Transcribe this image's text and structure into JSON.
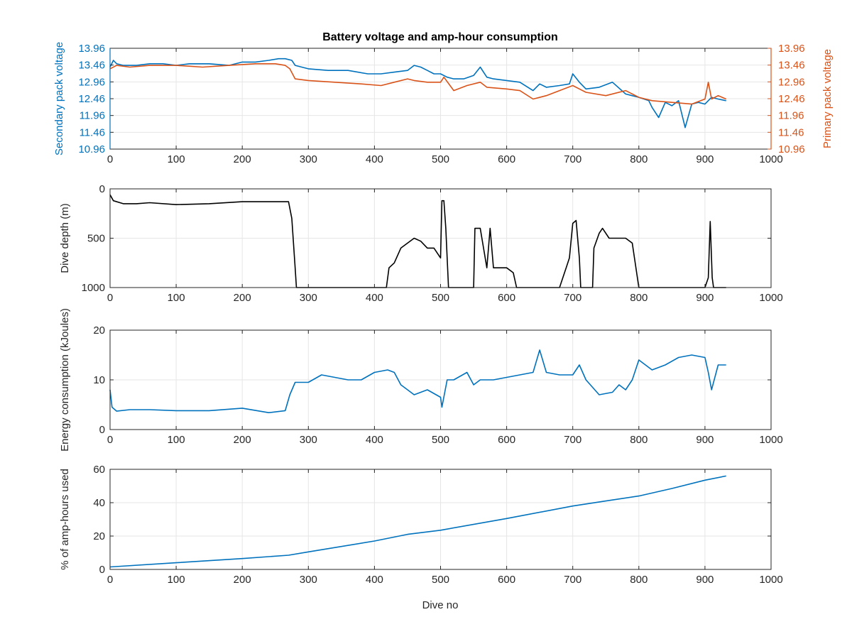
{
  "figure": {
    "title": "Battery voltage and amp-hour consumption",
    "xlabel": "Dive no"
  },
  "colors": {
    "secondary": "#0072bd",
    "primary": "#d95319",
    "depth": "#000000",
    "energy": "#0072bd",
    "amphours": "#0072bd"
  },
  "chart_data": [
    {
      "type": "line",
      "title": "Battery voltage and amp-hour consumption",
      "xlabel": "",
      "ylabel": "Secondary pack voltage",
      "ylabel_right": "Primary pack voltage",
      "xlim": [
        0,
        1000
      ],
      "ylim": [
        10.96,
        13.96
      ],
      "xticks": [
        "0",
        "100",
        "200",
        "300",
        "400",
        "500",
        "600",
        "700",
        "800",
        "900",
        "1000"
      ],
      "yticks": [
        "10.96",
        "11.46",
        "11.96",
        "12.46",
        "12.96",
        "13.46",
        "13.96"
      ],
      "grid": true,
      "series": [
        {
          "axis": "left",
          "color": "#0072bd",
          "x": [
            0,
            5,
            10,
            20,
            40,
            60,
            80,
            100,
            120,
            150,
            180,
            200,
            220,
            240,
            255,
            265,
            275,
            280,
            300,
            330,
            360,
            390,
            410,
            430,
            450,
            460,
            470,
            480,
            490,
            500,
            510,
            520,
            535,
            550,
            560,
            570,
            580,
            600,
            620,
            640,
            650,
            660,
            680,
            695,
            700,
            710,
            720,
            740,
            760,
            780,
            800,
            815,
            820,
            830,
            840,
            850,
            860,
            870,
            880,
            890,
            900,
            910,
            920,
            932
          ],
          "y": [
            13.4,
            13.6,
            13.5,
            13.45,
            13.45,
            13.5,
            13.5,
            13.45,
            13.5,
            13.5,
            13.45,
            13.55,
            13.55,
            13.6,
            13.65,
            13.65,
            13.6,
            13.45,
            13.35,
            13.3,
            13.3,
            13.2,
            13.2,
            13.25,
            13.3,
            13.45,
            13.4,
            13.3,
            13.2,
            13.2,
            13.1,
            13.05,
            13.05,
            13.15,
            13.4,
            13.1,
            13.05,
            13.0,
            12.95,
            12.7,
            12.9,
            12.8,
            12.85,
            12.9,
            13.2,
            12.95,
            12.75,
            12.8,
            12.95,
            12.6,
            12.5,
            12.4,
            12.2,
            11.9,
            12.35,
            12.25,
            12.4,
            11.6,
            12.3,
            12.35,
            12.3,
            12.5,
            12.45,
            12.4
          ]
        },
        {
          "axis": "right",
          "color": "#d95319",
          "x": [
            0,
            10,
            30,
            60,
            100,
            140,
            180,
            220,
            250,
            265,
            272,
            280,
            300,
            340,
            380,
            410,
            430,
            450,
            460,
            480,
            500,
            505,
            520,
            540,
            560,
            570,
            600,
            620,
            640,
            660,
            680,
            700,
            720,
            750,
            780,
            800,
            820,
            850,
            880,
            900,
            905,
            910,
            920,
            932
          ],
          "y": [
            13.35,
            13.45,
            13.4,
            13.45,
            13.45,
            13.4,
            13.45,
            13.5,
            13.5,
            13.45,
            13.35,
            13.05,
            13.0,
            12.95,
            12.9,
            12.85,
            12.95,
            13.05,
            13.0,
            12.95,
            12.95,
            13.1,
            12.7,
            12.85,
            12.95,
            12.8,
            12.75,
            12.7,
            12.45,
            12.55,
            12.7,
            12.85,
            12.65,
            12.55,
            12.7,
            12.5,
            12.4,
            12.35,
            12.3,
            12.45,
            12.95,
            12.45,
            12.55,
            12.45
          ]
        }
      ]
    },
    {
      "type": "line",
      "xlabel": "",
      "ylabel": "Dive depth (m)",
      "xlim": [
        0,
        1000
      ],
      "ylim": [
        1000,
        0
      ],
      "reversed_y": true,
      "xticks": [
        "0",
        "100",
        "200",
        "300",
        "400",
        "500",
        "600",
        "700",
        "800",
        "900",
        "1000"
      ],
      "yticks": [
        "0",
        "500",
        "1000"
      ],
      "grid": true,
      "series": [
        {
          "color": "#000000",
          "x": [
            0,
            5,
            20,
            40,
            60,
            100,
            150,
            200,
            230,
            260,
            270,
            275,
            280,
            282,
            300,
            350,
            400,
            418,
            422,
            430,
            440,
            450,
            460,
            470,
            480,
            490,
            500,
            502,
            505,
            508,
            512,
            515,
            550,
            552,
            555,
            560,
            570,
            575,
            580,
            590,
            600,
            610,
            615,
            620,
            680,
            690,
            695,
            700,
            705,
            710,
            712,
            730,
            732,
            740,
            745,
            755,
            760,
            770,
            780,
            790,
            800,
            805,
            900,
            905,
            908,
            911,
            913,
            932
          ],
          "y": [
            60,
            120,
            150,
            150,
            140,
            160,
            150,
            130,
            130,
            130,
            130,
            300,
            800,
            1000,
            1000,
            1000,
            1000,
            1000,
            800,
            750,
            600,
            550,
            500,
            530,
            600,
            600,
            700,
            120,
            120,
            400,
            1000,
            1000,
            1000,
            400,
            400,
            400,
            800,
            400,
            800,
            800,
            800,
            850,
            1000,
            1000,
            1000,
            800,
            700,
            350,
            320,
            700,
            1000,
            1000,
            600,
            450,
            400,
            500,
            500,
            500,
            500,
            550,
            1000,
            1000,
            1000,
            900,
            330,
            900,
            1000,
            1000
          ]
        }
      ]
    },
    {
      "type": "line",
      "xlabel": "",
      "ylabel": "Energy consumption (kJoules)",
      "xlim": [
        0,
        1000
      ],
      "ylim": [
        0,
        20
      ],
      "xticks": [
        "0",
        "100",
        "200",
        "300",
        "400",
        "500",
        "600",
        "700",
        "800",
        "900",
        "1000"
      ],
      "yticks": [
        "0",
        "10",
        "20"
      ],
      "grid": true,
      "series": [
        {
          "color": "#0072bd",
          "x": [
            0,
            3,
            10,
            30,
            60,
            100,
            150,
            200,
            240,
            265,
            272,
            280,
            300,
            320,
            340,
            360,
            380,
            400,
            420,
            430,
            440,
            450,
            460,
            480,
            500,
            502,
            510,
            520,
            540,
            550,
            560,
            570,
            580,
            600,
            620,
            640,
            650,
            660,
            680,
            700,
            710,
            720,
            740,
            760,
            770,
            780,
            790,
            800,
            810,
            820,
            840,
            860,
            880,
            900,
            905,
            910,
            920,
            932
          ],
          "y": [
            8,
            4.5,
            3.7,
            4,
            4,
            3.8,
            3.8,
            4.3,
            3.4,
            3.8,
            7,
            9.5,
            9.5,
            11,
            10.5,
            10,
            10,
            11.5,
            12,
            11.5,
            9,
            8,
            7,
            8,
            6.5,
            4.5,
            10,
            10,
            11.5,
            9,
            10,
            10,
            10,
            10.5,
            11,
            11.5,
            16,
            11.5,
            11,
            11,
            13,
            10,
            7,
            7.5,
            9,
            8,
            10,
            14,
            13,
            12,
            13,
            14.5,
            15,
            14.5,
            11.5,
            8,
            13,
            13
          ]
        }
      ]
    },
    {
      "type": "line",
      "xlabel": "Dive no",
      "ylabel": "% of amp-hours used",
      "xlim": [
        0,
        1000
      ],
      "ylim": [
        0,
        60
      ],
      "xticks": [
        "0",
        "100",
        "200",
        "300",
        "400",
        "500",
        "600",
        "700",
        "800",
        "900",
        "1000"
      ],
      "yticks": [
        "0",
        "20",
        "40",
        "60"
      ],
      "grid": true,
      "series": [
        {
          "color": "#0072bd",
          "x": [
            0,
            100,
            200,
            270,
            300,
            400,
            450,
            500,
            600,
            700,
            750,
            800,
            850,
            900,
            932
          ],
          "y": [
            1.5,
            4,
            6.5,
            8.5,
            10.5,
            17,
            21,
            23.5,
            30.5,
            38,
            41,
            44,
            48.5,
            53.5,
            56
          ]
        }
      ]
    }
  ]
}
